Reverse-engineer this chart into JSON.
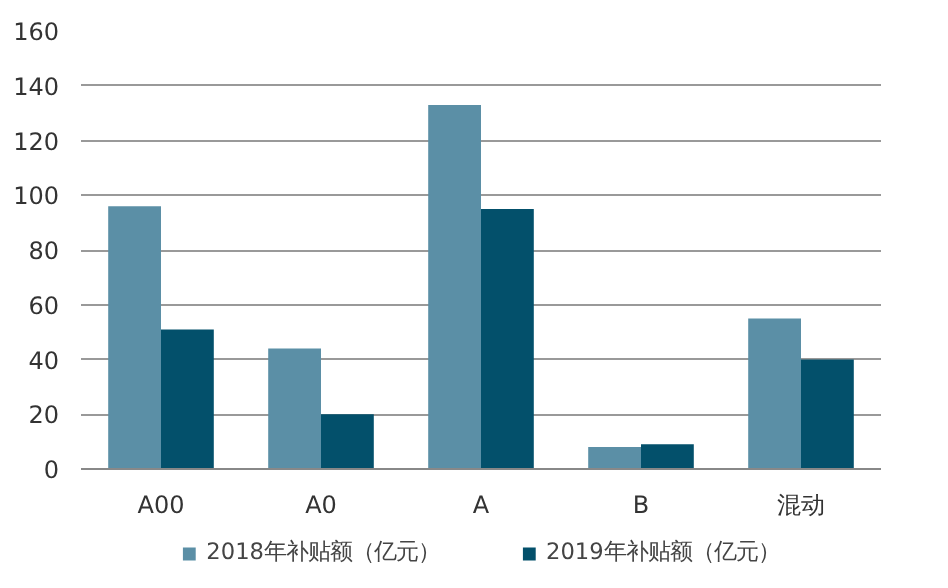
{
  "chart_data": {
    "type": "bar",
    "categories": [
      "A00",
      "A0",
      "A",
      "B",
      "混动"
    ],
    "series": [
      {
        "name": "2018年补贴额（亿元）",
        "color": "#5b8fa6",
        "values": [
          96,
          44,
          133,
          8,
          55
        ]
      },
      {
        "name": "2019年补贴额（亿元）",
        "color": "#03506b",
        "values": [
          51,
          20,
          95,
          9,
          40
        ]
      }
    ],
    "ylim": [
      0,
      160
    ],
    "yticks": [
      0,
      20,
      40,
      60,
      80,
      100,
      120,
      140,
      160
    ],
    "grid": "y",
    "legend": "bottom"
  }
}
